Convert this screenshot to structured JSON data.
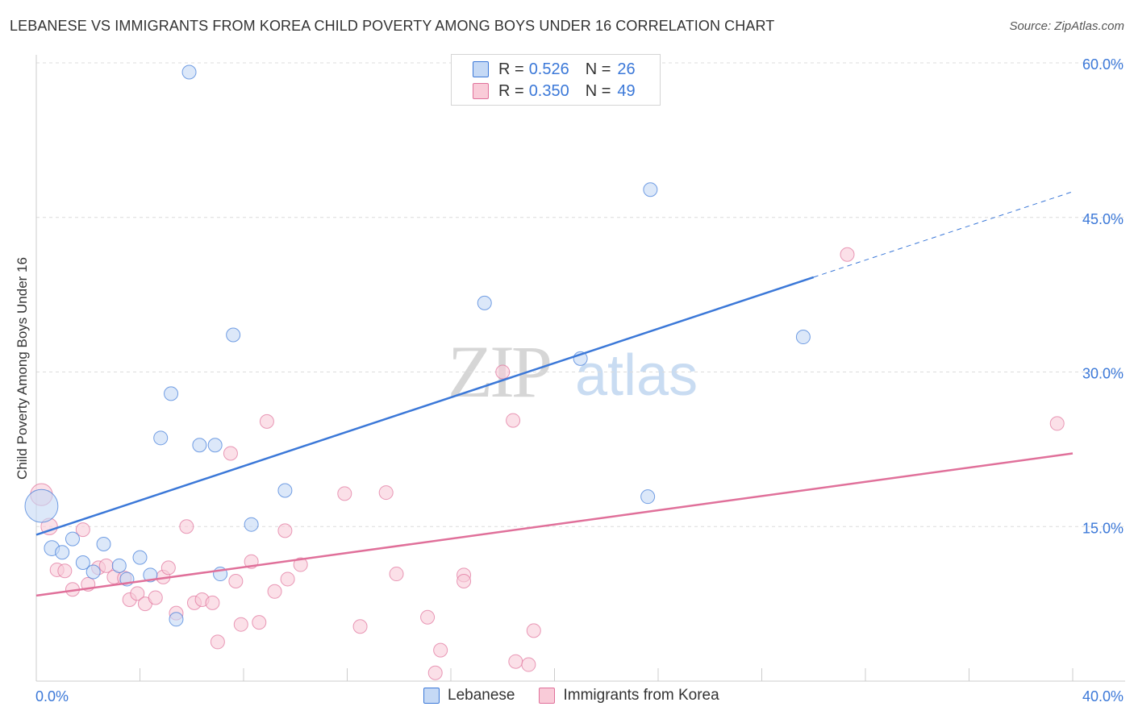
{
  "title": "LEBANESE VS IMMIGRANTS FROM KOREA CHILD POVERTY AMONG BOYS UNDER 16 CORRELATION CHART",
  "source": "Source: ZipAtlas.com",
  "watermark": {
    "zip": "ZIP",
    "atlas": "atlas"
  },
  "legend": {
    "r_label": "R =",
    "n_label": "N =",
    "rows": [
      {
        "name": "Lebanese",
        "r": "0.526",
        "n": "26"
      },
      {
        "name": "Immigrants from Korea",
        "r": "0.350",
        "n": "49"
      }
    ]
  },
  "chart_data": {
    "type": "scatter",
    "title": "LEBANESE VS IMMIGRANTS FROM KOREA CHILD POVERTY AMONG BOYS UNDER 16 CORRELATION CHART",
    "xlabel": "",
    "ylabel": "Child Poverty Among Boys Under 16",
    "xlim": [
      0,
      40
    ],
    "ylim": [
      0,
      60
    ],
    "x_tick_labels": [
      "0.0%",
      "40.0%"
    ],
    "y_ticks": [
      15,
      30,
      45,
      60
    ],
    "y_tick_labels": [
      "15.0%",
      "30.0%",
      "45.0%",
      "60.0%"
    ],
    "grid": true,
    "colors": {
      "lebanese": "#3b78d8",
      "korea": "#e0709a",
      "lebanese_fill": "#c5d9f5",
      "korea_fill": "#f9cbd8"
    },
    "series": [
      {
        "name": "Lebanese",
        "r": 0.526,
        "n": 26,
        "trend": {
          "x0": 0,
          "y0": 14.2,
          "x1": 30,
          "y1": 39.2,
          "dash_to_x": 40,
          "dash_to_y": 47.5
        },
        "points": [
          [
            0.2,
            17.0,
            24
          ],
          [
            0.6,
            12.9,
            11
          ],
          [
            1.0,
            12.5,
            10
          ],
          [
            1.4,
            13.8,
            10
          ],
          [
            1.8,
            11.5,
            10
          ],
          [
            2.2,
            10.6,
            10
          ],
          [
            2.6,
            13.3,
            10
          ],
          [
            3.2,
            11.2,
            10
          ],
          [
            3.5,
            9.9,
            10
          ],
          [
            4.0,
            12.0,
            10
          ],
          [
            4.4,
            10.3,
            10
          ],
          [
            4.8,
            23.6,
            10
          ],
          [
            5.2,
            27.9,
            10
          ],
          [
            5.4,
            6.0,
            10
          ],
          [
            5.9,
            59.1,
            10
          ],
          [
            6.3,
            22.9,
            10
          ],
          [
            6.9,
            22.9,
            10
          ],
          [
            7.1,
            10.4,
            10
          ],
          [
            7.6,
            33.6,
            10
          ],
          [
            8.3,
            15.2,
            10
          ],
          [
            9.6,
            18.5,
            10
          ],
          [
            17.3,
            36.7,
            10
          ],
          [
            21.0,
            31.3,
            10
          ],
          [
            23.7,
            47.7,
            10
          ],
          [
            23.6,
            17.9,
            10
          ],
          [
            29.6,
            33.4,
            10
          ]
        ]
      },
      {
        "name": "Immigrants from Korea",
        "r": 0.35,
        "n": 49,
        "trend": {
          "x0": 0,
          "y0": 8.3,
          "x1": 40,
          "y1": 22.1
        },
        "points": [
          [
            0.2,
            18.1,
            16
          ],
          [
            0.5,
            15.0,
            12
          ],
          [
            0.8,
            10.8,
            10
          ],
          [
            1.1,
            10.7,
            10
          ],
          [
            1.4,
            8.9,
            10
          ],
          [
            1.8,
            14.7,
            10
          ],
          [
            2.0,
            9.4,
            10
          ],
          [
            2.4,
            11.0,
            10
          ],
          [
            2.7,
            11.2,
            10
          ],
          [
            3.0,
            10.1,
            10
          ],
          [
            3.4,
            10.0,
            10
          ],
          [
            3.6,
            7.9,
            10
          ],
          [
            3.9,
            8.5,
            10
          ],
          [
            4.2,
            7.5,
            10
          ],
          [
            4.6,
            8.1,
            10
          ],
          [
            4.9,
            10.1,
            10
          ],
          [
            5.1,
            11.0,
            10
          ],
          [
            5.4,
            6.6,
            10
          ],
          [
            5.8,
            15.0,
            10
          ],
          [
            6.1,
            7.6,
            10
          ],
          [
            6.4,
            7.9,
            10
          ],
          [
            6.8,
            7.6,
            10
          ],
          [
            7.0,
            3.8,
            10
          ],
          [
            7.5,
            22.1,
            10
          ],
          [
            7.7,
            9.7,
            10
          ],
          [
            7.9,
            5.5,
            10
          ],
          [
            8.3,
            11.6,
            10
          ],
          [
            8.6,
            5.7,
            10
          ],
          [
            8.9,
            25.2,
            10
          ],
          [
            9.2,
            8.7,
            10
          ],
          [
            9.6,
            14.6,
            10
          ],
          [
            9.7,
            9.9,
            10
          ],
          [
            10.2,
            11.3,
            10
          ],
          [
            11.9,
            18.2,
            10
          ],
          [
            12.5,
            5.3,
            10
          ],
          [
            13.5,
            18.3,
            10
          ],
          [
            13.9,
            10.4,
            10
          ],
          [
            15.1,
            6.2,
            10
          ],
          [
            15.4,
            0.8,
            10
          ],
          [
            15.6,
            3.0,
            10
          ],
          [
            16.5,
            10.3,
            10
          ],
          [
            16.5,
            9.7,
            10
          ],
          [
            18.0,
            30.0,
            10
          ],
          [
            18.4,
            25.3,
            10
          ],
          [
            18.5,
            1.9,
            10
          ],
          [
            19.0,
            1.6,
            10
          ],
          [
            19.2,
            4.9,
            10
          ],
          [
            31.3,
            41.4,
            10
          ],
          [
            39.4,
            25.0,
            10
          ]
        ]
      }
    ]
  }
}
